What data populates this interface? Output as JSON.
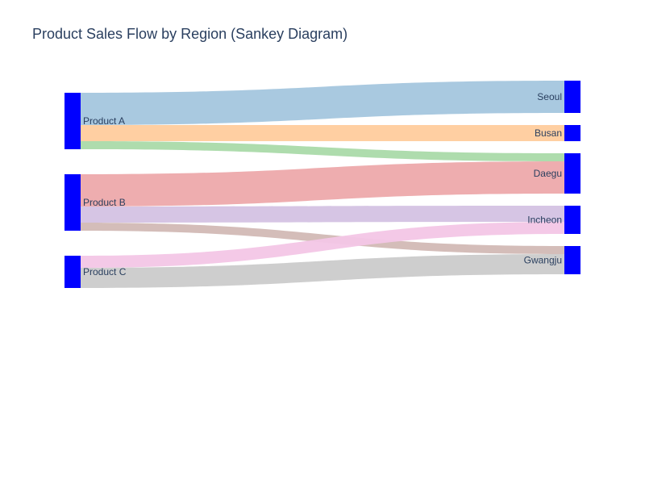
{
  "title": "Product Sales Flow by Region (Sankey Diagram)",
  "chart_data": {
    "type": "sankey",
    "title": "Product Sales Flow by Region (Sankey Diagram)",
    "node_color": "#0000ff",
    "sources": [
      "Product A",
      "Product B",
      "Product C"
    ],
    "targets": [
      "Seoul",
      "Busan",
      "Daegu",
      "Incheon",
      "Gwangju"
    ],
    "links": [
      {
        "source": "Product A",
        "target": "Seoul",
        "value": 80,
        "color": "#a4c6de"
      },
      {
        "source": "Product A",
        "target": "Busan",
        "value": 40,
        "color": "#ffcc9d"
      },
      {
        "source": "Product A",
        "target": "Daegu",
        "value": 20,
        "color": "#aadaa9"
      },
      {
        "source": "Product B",
        "target": "Daegu",
        "value": 80,
        "color": "#eda9ab"
      },
      {
        "source": "Product B",
        "target": "Incheon",
        "value": 40,
        "color": "#d4c2e3"
      },
      {
        "source": "Product B",
        "target": "Gwangju",
        "value": 20,
        "color": "#d2b9b5"
      },
      {
        "source": "Product C",
        "target": "Incheon",
        "value": 30,
        "color": "#f3c6e6"
      },
      {
        "source": "Product C",
        "target": "Gwangju",
        "value": 50,
        "color": "#cbcbcb"
      }
    ]
  }
}
